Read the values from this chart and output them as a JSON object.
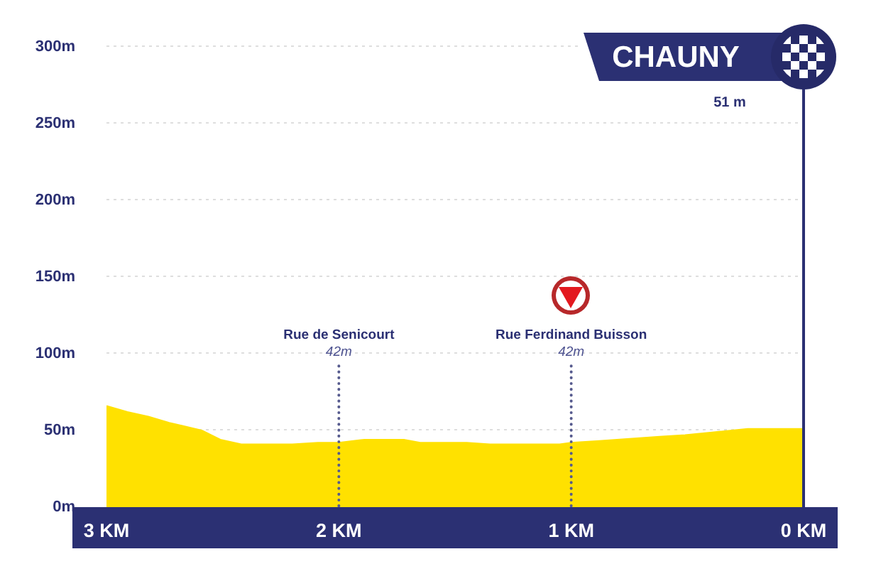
{
  "chart_data": {
    "type": "area",
    "x": [
      3,
      2.91,
      2.82,
      2.73,
      2.59,
      2.51,
      2.42,
      2.2,
      2.09,
      2,
      1.89,
      1.72,
      1.65,
      1.45,
      1.35,
      1.05,
      1,
      0.89,
      0.62,
      0.51,
      0.24,
      0
    ],
    "values": [
      66,
      62,
      59,
      55,
      50,
      44,
      41,
      41,
      42,
      42,
      44,
      44,
      42,
      42,
      41,
      41,
      42,
      43,
      46,
      47,
      51,
      51
    ],
    "color": "#ffe100",
    "xlim": [
      3,
      0
    ],
    "xticks": [
      {
        "value": 3,
        "label": "3 KM"
      },
      {
        "value": 2,
        "label": "2 KM"
      },
      {
        "value": 1,
        "label": "1 KM"
      },
      {
        "value": 0,
        "label": "0 KM"
      }
    ],
    "ylim": [
      0,
      300
    ],
    "yticks": [
      {
        "value": 0,
        "label": "0m"
      },
      {
        "value": 50,
        "label": "50m"
      },
      {
        "value": 100,
        "label": "100m"
      },
      {
        "value": 150,
        "label": "150m"
      },
      {
        "value": 200,
        "label": "200m"
      },
      {
        "value": 250,
        "label": "250m"
      },
      {
        "value": 300,
        "label": "300m"
      }
    ],
    "grid": "y",
    "marker": "none",
    "ref_lines": [
      {
        "axis": "x",
        "value": 2,
        "label": "Rue de Senicourt",
        "color": "#565a8e",
        "line_style": "dotted"
      },
      {
        "axis": "x",
        "value": 1,
        "label": "Rue Ferdinand Buisson",
        "color": "#565a8e",
        "line_style": "dotted"
      },
      {
        "axis": "x",
        "value": 0,
        "color": "#2b3073",
        "line_style": "solid"
      }
    ],
    "annotations": [
      "42m",
      "42m",
      "CHAUNY",
      "51 m"
    ]
  }
}
